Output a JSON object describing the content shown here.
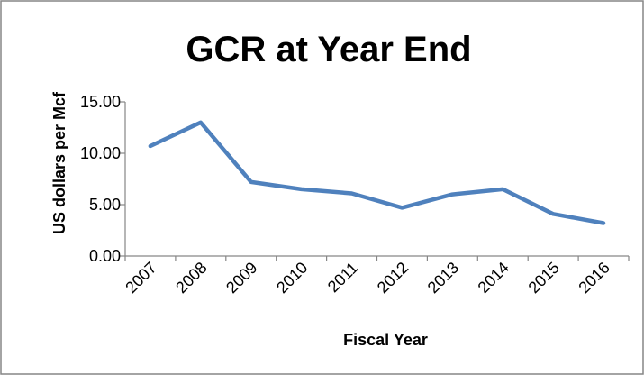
{
  "chart_data": {
    "type": "line",
    "title": "GCR at Year End",
    "xlabel": "Fiscal Year",
    "ylabel": "US dollars per Mcf",
    "categories": [
      "2007",
      "2008",
      "2009",
      "2010",
      "2011",
      "2012",
      "2013",
      "2014",
      "2015",
      "2016"
    ],
    "series": [
      {
        "values": [
          10.7,
          13.0,
          7.2,
          6.5,
          6.1,
          4.7,
          6.0,
          6.5,
          4.1,
          3.2
        ]
      }
    ],
    "ylim": [
      0,
      15
    ],
    "yticks": [
      "0.00",
      "5.00",
      "10.00",
      "15.00"
    ],
    "grid": false,
    "legend": "none",
    "line_color": "#4f81bd",
    "axis_color": "#868686",
    "border_color": "#868686"
  }
}
